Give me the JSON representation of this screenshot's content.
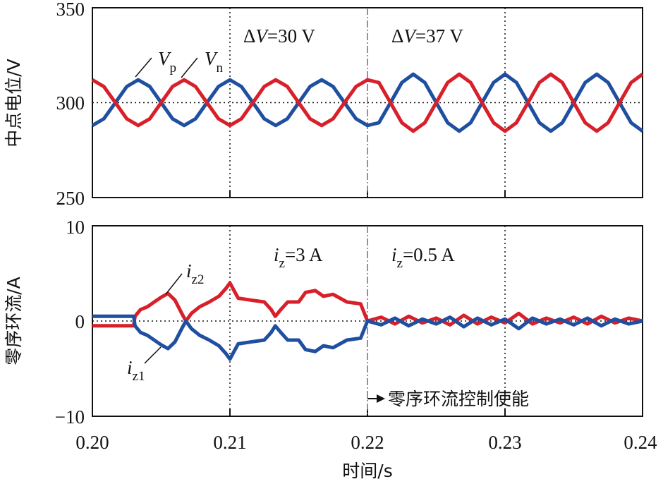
{
  "chart_data": [
    {
      "type": "line",
      "ylabel": "中点电位/V",
      "xlim": [
        0.2,
        0.24
      ],
      "ylim": [
        250,
        350
      ],
      "yticks": [
        "250",
        "300",
        "350"
      ],
      "grid": "dotted verticals at 0.21 and 0.23, dotted horizontal at 300, dash-dot marker at 0.22",
      "annotations": {
        "dv1": {
          "pre": "Δ",
          "var": "V",
          "post": "=30 V"
        },
        "dv2": {
          "pre": "Δ",
          "var": "V",
          "post": "=37 V"
        }
      },
      "x": [
        0.2,
        0.20083,
        0.20167,
        0.2025,
        0.20333,
        0.20417,
        0.205,
        0.20583,
        0.20667,
        0.2075,
        0.20833,
        0.20917,
        0.21,
        0.21083,
        0.21167,
        0.2125,
        0.21333,
        0.21417,
        0.215,
        0.21583,
        0.21667,
        0.2175,
        0.21833,
        0.21917,
        0.22,
        0.22083,
        0.22167,
        0.2225,
        0.22333,
        0.22417,
        0.225,
        0.22583,
        0.22667,
        0.2275,
        0.22833,
        0.22917,
        0.23,
        0.23083,
        0.23167,
        0.2325,
        0.23333,
        0.23417,
        0.235,
        0.23583,
        0.23667,
        0.2375,
        0.23833,
        0.23917,
        0.24
      ],
      "series": [
        {
          "name": "Vp",
          "label": {
            "main": "V",
            "sub": "p"
          },
          "color": "#1f4fa0",
          "values": [
            288,
            291.5,
            300,
            308.5,
            312,
            308.5,
            300,
            291.5,
            288,
            291.5,
            300,
            308.5,
            312,
            308.5,
            300,
            291.5,
            288,
            291.5,
            300,
            308.5,
            312,
            308.5,
            300,
            291.5,
            288,
            289.4,
            300,
            310.6,
            315,
            310.6,
            300,
            289.4,
            285,
            289.4,
            300,
            310.6,
            315,
            310.6,
            300,
            289.4,
            285,
            289.4,
            300,
            310.6,
            315,
            310.6,
            300,
            289.4,
            285
          ]
        },
        {
          "name": "Vn",
          "label": {
            "main": "V",
            "sub": "n"
          },
          "color": "#d7202a",
          "values": [
            312,
            308.5,
            300,
            291.5,
            288,
            291.5,
            300,
            308.5,
            312,
            308.5,
            300,
            291.5,
            288,
            291.5,
            300,
            308.5,
            312,
            308.5,
            300,
            291.5,
            288,
            291.5,
            300,
            308.5,
            312,
            310.6,
            300,
            289.4,
            285,
            289.4,
            300,
            310.6,
            315,
            310.6,
            300,
            289.4,
            285,
            289.4,
            300,
            310.6,
            315,
            310.6,
            300,
            289.4,
            285,
            289.4,
            300,
            310.6,
            315
          ]
        }
      ]
    },
    {
      "type": "line",
      "ylabel": "零序环流/A",
      "xlabel": "时间/s",
      "xlim": [
        0.2,
        0.24
      ],
      "ylim": [
        -10,
        10
      ],
      "xticks": [
        "0.20",
        "0.21",
        "0.22",
        "0.23",
        "0.24"
      ],
      "yticks": [
        "−10",
        "0",
        "10"
      ],
      "annotations": {
        "iz1": {
          "var": "i",
          "sub": "z",
          "post": "=3 A"
        },
        "iz2": {
          "var": "i",
          "sub": "z",
          "post": "=0.5 A"
        },
        "enable": "零序环流控制使能"
      },
      "x": [
        0.2,
        0.203,
        0.2031,
        0.2035,
        0.204,
        0.2045,
        0.205,
        0.2055,
        0.206,
        0.2065,
        0.2068,
        0.2072,
        0.2078,
        0.2085,
        0.2092,
        0.2097,
        0.21,
        0.2103,
        0.2106,
        0.2115,
        0.2125,
        0.213,
        0.2133,
        0.2137,
        0.2142,
        0.215,
        0.2155,
        0.2162,
        0.2168,
        0.2175,
        0.2185,
        0.2195,
        0.22,
        0.221,
        0.222,
        0.223,
        0.224,
        0.225,
        0.226,
        0.227,
        0.228,
        0.229,
        0.23,
        0.231,
        0.232,
        0.233,
        0.234,
        0.235,
        0.236,
        0.237,
        0.238,
        0.239,
        0.24
      ],
      "series": [
        {
          "name": "iz2",
          "label": {
            "main": "i",
            "sub": "z2"
          },
          "color": "#d7202a",
          "values": [
            -0.5,
            -0.5,
            0.5,
            1.2,
            1.5,
            2.0,
            2.5,
            2.9,
            2.2,
            0.8,
            0,
            0.8,
            1.5,
            2.0,
            2.6,
            3.4,
            4.0,
            3.2,
            2.4,
            2.2,
            2.0,
            1.2,
            0.5,
            1.2,
            2.0,
            2.0,
            3.0,
            3.2,
            2.6,
            2.8,
            2.0,
            1.8,
            0,
            0.4,
            -0.3,
            0.5,
            -0.2,
            0.3,
            -0.4,
            0.6,
            -0.3,
            0.4,
            -0.2,
            0.8,
            -0.3,
            0.3,
            -0.2,
            0.4,
            -0.3,
            0.5,
            -0.2,
            0.3,
            0
          ]
        },
        {
          "name": "iz1",
          "label": {
            "main": "i",
            "sub": "z1"
          },
          "color": "#1f4fa0",
          "values": [
            0.5,
            0.5,
            -0.5,
            -1.2,
            -1.5,
            -2.0,
            -2.5,
            -2.9,
            -2.2,
            -0.8,
            0,
            -0.8,
            -1.5,
            -2.0,
            -2.6,
            -3.4,
            -4.0,
            -3.2,
            -2.4,
            -2.2,
            -2.0,
            -1.2,
            -0.5,
            -1.2,
            -2.0,
            -2.0,
            -3.0,
            -3.2,
            -2.6,
            -2.8,
            -2.0,
            -1.8,
            0,
            -0.4,
            0.3,
            -0.5,
            0.2,
            -0.3,
            0.4,
            -0.6,
            0.3,
            -0.4,
            0.2,
            -0.8,
            0.3,
            -0.3,
            0.2,
            -0.4,
            0.3,
            -0.5,
            0.2,
            -0.3,
            0
          ]
        }
      ]
    }
  ]
}
